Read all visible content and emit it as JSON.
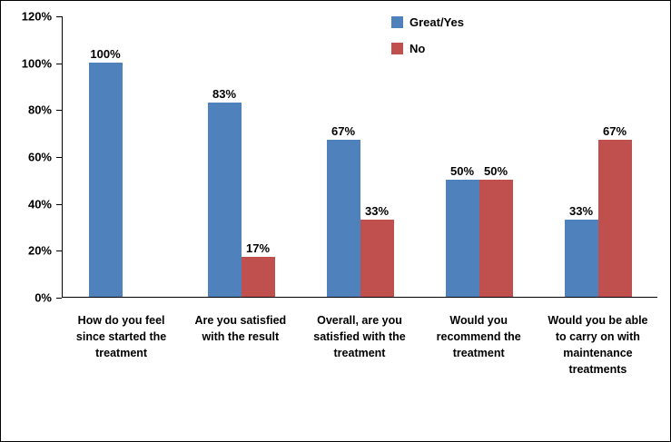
{
  "chart_data": {
    "type": "bar",
    "title": "",
    "xlabel": "",
    "ylabel": "",
    "categories": [
      "How do you feel since started the treatment",
      "Are you satisfied with the result",
      "Overall, are you satisfied with the treatment",
      "Would you recommend the treatment",
      "Would you be able to carry on with maintenance treatments"
    ],
    "series": [
      {
        "name": "Great/Yes",
        "color": "#4F81BD",
        "values": [
          100,
          83,
          67,
          50,
          33
        ],
        "labels": [
          "100%",
          "83%",
          "67%",
          "50%",
          "33%"
        ]
      },
      {
        "name": "No",
        "color": "#C0504D",
        "values": [
          0,
          17,
          33,
          50,
          67
        ],
        "labels": [
          "",
          "17%",
          "33%",
          "50%",
          "67%"
        ]
      }
    ],
    "ylim": [
      0,
      120
    ],
    "ytick_step": 20,
    "ytick_labels": [
      "0%",
      "20%",
      "40%",
      "60%",
      "80%",
      "100%",
      "120%"
    ],
    "grid": false,
    "legend_position": "top-center"
  }
}
